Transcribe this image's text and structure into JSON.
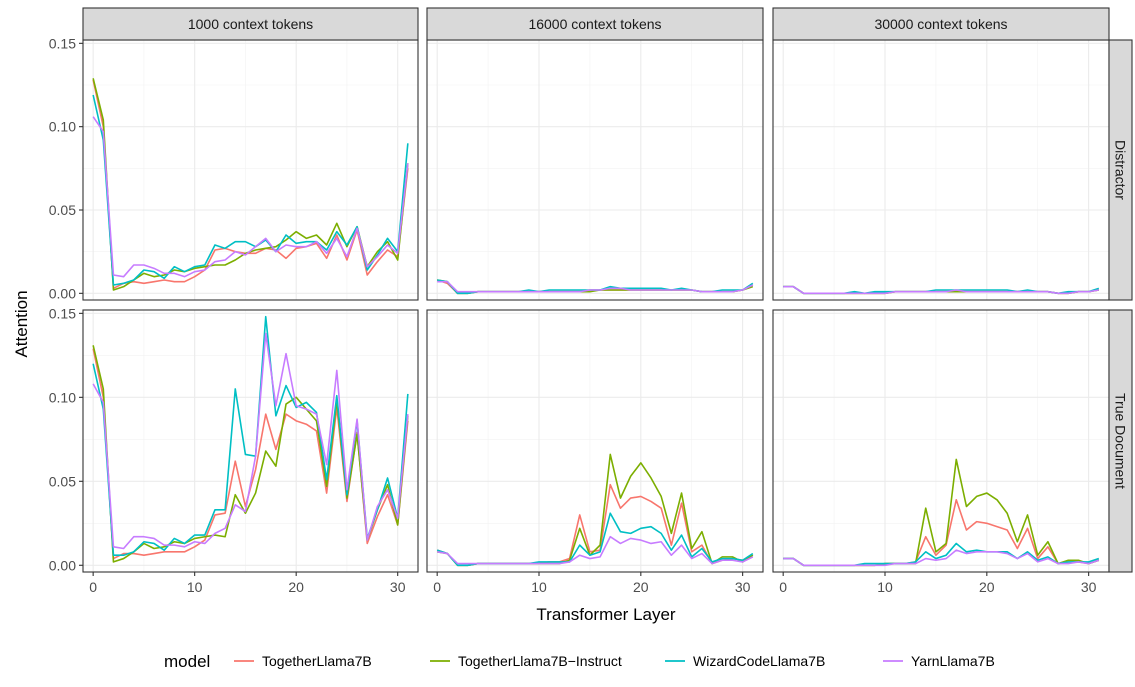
{
  "chart_data": {
    "type": "line",
    "xlabel": "Transformer Layer",
    "ylabel": "Attention",
    "xlim": [
      -1,
      32
    ],
    "ylim": [
      -0.004,
      0.152
    ],
    "xticks": [
      0,
      10,
      20,
      30
    ],
    "yticks": [
      0.0,
      0.05,
      0.1,
      0.15
    ],
    "ytick_labels": [
      "0.00",
      "0.05",
      "0.10",
      "0.15"
    ],
    "grid": true,
    "legend_title": "model",
    "legend_position": "bottom",
    "columns": [
      "1000 context tokens",
      "16000 context tokens",
      "30000 context tokens"
    ],
    "rows": [
      "Distractor",
      "True Document"
    ],
    "x": [
      0,
      1,
      2,
      3,
      4,
      5,
      6,
      7,
      8,
      9,
      10,
      11,
      12,
      13,
      14,
      15,
      16,
      17,
      18,
      19,
      20,
      21,
      22,
      23,
      24,
      25,
      26,
      27,
      28,
      29,
      30,
      31
    ],
    "models": [
      {
        "name": "TogetherLlama7B",
        "color": "#F8766D"
      },
      {
        "name": "TogetherLlama7B−Instruct",
        "color": "#7CAE00"
      },
      {
        "name": "WizardCodeLlama7B",
        "color": "#00BFC4"
      },
      {
        "name": "YarnLlama7B",
        "color": "#C77CFF"
      }
    ],
    "panels": [
      {
        "row": 0,
        "col": 0,
        "series": [
          [
            0.128,
            0.1,
            0.003,
            0.006,
            0.007,
            0.006,
            0.007,
            0.008,
            0.007,
            0.007,
            0.01,
            0.014,
            0.026,
            0.027,
            0.025,
            0.024,
            0.024,
            0.027,
            0.026,
            0.021,
            0.027,
            0.028,
            0.03,
            0.021,
            0.035,
            0.02,
            0.038,
            0.011,
            0.019,
            0.026,
            0.022,
            0.075
          ],
          [
            0.129,
            0.104,
            0.002,
            0.004,
            0.008,
            0.012,
            0.01,
            0.011,
            0.014,
            0.013,
            0.015,
            0.016,
            0.017,
            0.017,
            0.02,
            0.024,
            0.026,
            0.027,
            0.028,
            0.032,
            0.037,
            0.033,
            0.035,
            0.029,
            0.042,
            0.028,
            0.04,
            0.016,
            0.025,
            0.031,
            0.02,
            0.078
          ],
          [
            0.119,
            0.092,
            0.005,
            0.006,
            0.008,
            0.014,
            0.013,
            0.009,
            0.016,
            0.013,
            0.016,
            0.017,
            0.029,
            0.027,
            0.031,
            0.031,
            0.028,
            0.032,
            0.025,
            0.035,
            0.03,
            0.031,
            0.031,
            0.026,
            0.037,
            0.029,
            0.04,
            0.014,
            0.023,
            0.033,
            0.025,
            0.09
          ],
          [
            0.106,
            0.097,
            0.011,
            0.01,
            0.017,
            0.017,
            0.015,
            0.012,
            0.012,
            0.01,
            0.013,
            0.014,
            0.019,
            0.02,
            0.025,
            0.023,
            0.028,
            0.033,
            0.025,
            0.029,
            0.028,
            0.028,
            0.031,
            0.024,
            0.033,
            0.022,
            0.039,
            0.016,
            0.022,
            0.029,
            0.024,
            0.078
          ]
        ]
      },
      {
        "row": 0,
        "col": 1,
        "series": [
          [
            0.008,
            0.006,
            0.0,
            0.0,
            0.001,
            0.001,
            0.001,
            0.001,
            0.001,
            0.001,
            0.001,
            0.001,
            0.001,
            0.001,
            0.001,
            0.002,
            0.002,
            0.002,
            0.002,
            0.002,
            0.002,
            0.002,
            0.002,
            0.002,
            0.002,
            0.002,
            0.001,
            0.001,
            0.001,
            0.001,
            0.002,
            0.005
          ],
          [
            0.008,
            0.007,
            0.0,
            0.0,
            0.001,
            0.001,
            0.001,
            0.001,
            0.001,
            0.001,
            0.001,
            0.001,
            0.001,
            0.001,
            0.001,
            0.001,
            0.002,
            0.002,
            0.002,
            0.002,
            0.002,
            0.002,
            0.002,
            0.002,
            0.002,
            0.002,
            0.001,
            0.001,
            0.001,
            0.001,
            0.002,
            0.004
          ],
          [
            0.008,
            0.007,
            0.0,
            0.0,
            0.001,
            0.001,
            0.001,
            0.001,
            0.001,
            0.002,
            0.001,
            0.002,
            0.002,
            0.002,
            0.002,
            0.002,
            0.002,
            0.004,
            0.003,
            0.003,
            0.003,
            0.003,
            0.003,
            0.002,
            0.003,
            0.002,
            0.001,
            0.001,
            0.002,
            0.002,
            0.002,
            0.006
          ],
          [
            0.007,
            0.007,
            0.001,
            0.001,
            0.001,
            0.001,
            0.001,
            0.001,
            0.001,
            0.001,
            0.001,
            0.001,
            0.001,
            0.001,
            0.001,
            0.002,
            0.002,
            0.003,
            0.003,
            0.002,
            0.002,
            0.002,
            0.002,
            0.002,
            0.002,
            0.002,
            0.001,
            0.001,
            0.001,
            0.001,
            0.002,
            0.005
          ]
        ]
      },
      {
        "row": 0,
        "col": 2,
        "series": [
          [
            0.004,
            0.004,
            0.0,
            0.0,
            0.0,
            0.0,
            0.0,
            0.0,
            0.0,
            0.0,
            0.0,
            0.001,
            0.001,
            0.001,
            0.001,
            0.001,
            0.001,
            0.001,
            0.001,
            0.001,
            0.001,
            0.001,
            0.001,
            0.001,
            0.001,
            0.001,
            0.001,
            0.0,
            0.0,
            0.001,
            0.001,
            0.002
          ],
          [
            0.004,
            0.004,
            0.0,
            0.0,
            0.0,
            0.0,
            0.0,
            0.0,
            0.0,
            0.0,
            0.0,
            0.001,
            0.001,
            0.001,
            0.001,
            0.001,
            0.001,
            0.001,
            0.001,
            0.001,
            0.001,
            0.001,
            0.001,
            0.001,
            0.001,
            0.001,
            0.001,
            0.0,
            0.0,
            0.001,
            0.001,
            0.002
          ],
          [
            0.004,
            0.004,
            0.0,
            0.0,
            0.0,
            0.0,
            0.0,
            0.001,
            0.0,
            0.001,
            0.001,
            0.001,
            0.001,
            0.001,
            0.001,
            0.002,
            0.002,
            0.002,
            0.002,
            0.002,
            0.002,
            0.002,
            0.002,
            0.001,
            0.002,
            0.001,
            0.001,
            0.0,
            0.001,
            0.001,
            0.001,
            0.003
          ],
          [
            0.004,
            0.004,
            0.0,
            0.0,
            0.0,
            0.0,
            0.0,
            0.0,
            0.0,
            0.0,
            0.0,
            0.001,
            0.001,
            0.001,
            0.001,
            0.001,
            0.001,
            0.002,
            0.001,
            0.001,
            0.001,
            0.001,
            0.001,
            0.001,
            0.001,
            0.001,
            0.001,
            0.0,
            0.0,
            0.001,
            0.001,
            0.002
          ]
        ]
      },
      {
        "row": 1,
        "col": 0,
        "series": [
          [
            0.129,
            0.1,
            0.004,
            0.007,
            0.007,
            0.006,
            0.007,
            0.008,
            0.008,
            0.008,
            0.011,
            0.015,
            0.03,
            0.031,
            0.062,
            0.035,
            0.057,
            0.09,
            0.069,
            0.09,
            0.086,
            0.084,
            0.08,
            0.043,
            0.094,
            0.038,
            0.079,
            0.013,
            0.029,
            0.042,
            0.024,
            0.086
          ],
          [
            0.131,
            0.105,
            0.002,
            0.004,
            0.008,
            0.013,
            0.01,
            0.011,
            0.014,
            0.013,
            0.016,
            0.017,
            0.018,
            0.017,
            0.042,
            0.031,
            0.043,
            0.068,
            0.059,
            0.096,
            0.1,
            0.093,
            0.086,
            0.047,
            0.098,
            0.04,
            0.078,
            0.015,
            0.033,
            0.048,
            0.024,
            0.089
          ],
          [
            0.12,
            0.093,
            0.006,
            0.006,
            0.008,
            0.014,
            0.013,
            0.009,
            0.016,
            0.013,
            0.018,
            0.018,
            0.033,
            0.033,
            0.105,
            0.066,
            0.065,
            0.148,
            0.089,
            0.107,
            0.094,
            0.097,
            0.091,
            0.051,
            0.101,
            0.042,
            0.086,
            0.016,
            0.033,
            0.052,
            0.028,
            0.102
          ],
          [
            0.108,
            0.097,
            0.011,
            0.01,
            0.017,
            0.017,
            0.016,
            0.012,
            0.012,
            0.011,
            0.014,
            0.013,
            0.019,
            0.022,
            0.036,
            0.032,
            0.065,
            0.138,
            0.095,
            0.126,
            0.095,
            0.093,
            0.09,
            0.06,
            0.116,
            0.045,
            0.087,
            0.015,
            0.035,
            0.045,
            0.028,
            0.09
          ]
        ]
      },
      {
        "row": 1,
        "col": 1,
        "series": [
          [
            0.009,
            0.007,
            0.0,
            0.0,
            0.001,
            0.001,
            0.001,
            0.001,
            0.001,
            0.001,
            0.001,
            0.002,
            0.002,
            0.004,
            0.03,
            0.008,
            0.009,
            0.048,
            0.034,
            0.04,
            0.041,
            0.038,
            0.034,
            0.012,
            0.037,
            0.008,
            0.012,
            0.001,
            0.003,
            0.004,
            0.003,
            0.006
          ],
          [
            0.008,
            0.007,
            0.0,
            0.0,
            0.001,
            0.001,
            0.001,
            0.001,
            0.001,
            0.001,
            0.001,
            0.001,
            0.001,
            0.003,
            0.022,
            0.006,
            0.012,
            0.066,
            0.04,
            0.053,
            0.061,
            0.052,
            0.041,
            0.019,
            0.043,
            0.01,
            0.02,
            0.001,
            0.005,
            0.005,
            0.002,
            0.006
          ],
          [
            0.009,
            0.007,
            0.0,
            0.0,
            0.001,
            0.001,
            0.001,
            0.001,
            0.001,
            0.001,
            0.002,
            0.002,
            0.002,
            0.002,
            0.012,
            0.006,
            0.008,
            0.031,
            0.02,
            0.019,
            0.022,
            0.023,
            0.019,
            0.009,
            0.018,
            0.005,
            0.01,
            0.002,
            0.004,
            0.004,
            0.003,
            0.007
          ],
          [
            0.008,
            0.007,
            0.001,
            0.001,
            0.001,
            0.001,
            0.001,
            0.001,
            0.001,
            0.001,
            0.001,
            0.001,
            0.001,
            0.002,
            0.006,
            0.004,
            0.005,
            0.017,
            0.013,
            0.016,
            0.015,
            0.013,
            0.014,
            0.006,
            0.012,
            0.004,
            0.007,
            0.001,
            0.003,
            0.003,
            0.002,
            0.005
          ]
        ]
      },
      {
        "row": 1,
        "col": 2,
        "series": [
          [
            0.004,
            0.004,
            0.0,
            0.0,
            0.0,
            0.0,
            0.0,
            0.0,
            0.0,
            0.0,
            0.001,
            0.001,
            0.001,
            0.002,
            0.017,
            0.006,
            0.012,
            0.039,
            0.021,
            0.026,
            0.025,
            0.023,
            0.021,
            0.01,
            0.022,
            0.004,
            0.011,
            0.001,
            0.002,
            0.002,
            0.001,
            0.003
          ],
          [
            0.004,
            0.004,
            0.0,
            0.0,
            0.0,
            0.0,
            0.0,
            0.0,
            0.0,
            0.0,
            0.001,
            0.001,
            0.001,
            0.001,
            0.034,
            0.008,
            0.013,
            0.063,
            0.035,
            0.041,
            0.043,
            0.039,
            0.031,
            0.014,
            0.03,
            0.006,
            0.014,
            0.001,
            0.003,
            0.003,
            0.001,
            0.003
          ],
          [
            0.004,
            0.004,
            0.0,
            0.0,
            0.0,
            0.0,
            0.0,
            0.0,
            0.001,
            0.001,
            0.001,
            0.001,
            0.001,
            0.002,
            0.008,
            0.004,
            0.006,
            0.013,
            0.008,
            0.009,
            0.008,
            0.008,
            0.008,
            0.004,
            0.008,
            0.003,
            0.005,
            0.001,
            0.002,
            0.002,
            0.002,
            0.004
          ],
          [
            0.004,
            0.004,
            0.0,
            0.0,
            0.0,
            0.0,
            0.0,
            0.0,
            0.0,
            0.0,
            0.0,
            0.001,
            0.001,
            0.001,
            0.004,
            0.003,
            0.004,
            0.009,
            0.007,
            0.008,
            0.008,
            0.008,
            0.007,
            0.004,
            0.007,
            0.002,
            0.004,
            0.001,
            0.001,
            0.002,
            0.001,
            0.003
          ]
        ]
      }
    ]
  }
}
